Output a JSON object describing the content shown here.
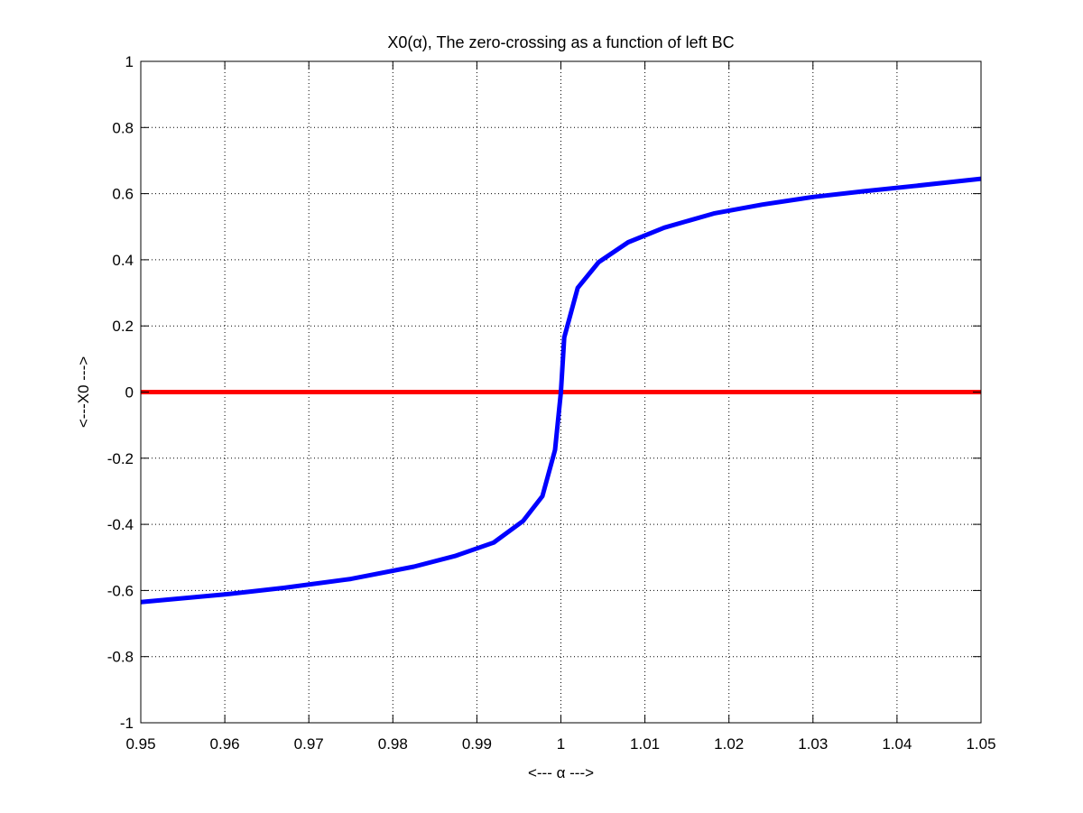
{
  "chart_data": {
    "type": "line",
    "title": "X0(α), The zero-crossing as a function of left BC",
    "xlabel": "<--- α --->",
    "ylabel": "<---X0 --->",
    "xlim": [
      0.95,
      1.05
    ],
    "ylim": [
      -1,
      1
    ],
    "xticks": [
      0.95,
      0.96,
      0.97,
      0.98,
      0.99,
      1,
      1.01,
      1.02,
      1.03,
      1.04,
      1.05
    ],
    "xtick_labels": [
      "0.95",
      "0.96",
      "0.97",
      "0.98",
      "0.99",
      "1",
      "1.01",
      "1.02",
      "1.03",
      "1.04",
      "1.05"
    ],
    "yticks": [
      -1,
      -0.8,
      -0.6,
      -0.4,
      -0.2,
      0,
      0.2,
      0.4,
      0.6,
      0.8,
      1
    ],
    "ytick_labels": [
      "-1",
      "-0.8",
      "-0.6",
      "-0.4",
      "-0.2",
      "0",
      "0.2",
      "0.4",
      "0.6",
      "0.8",
      "1"
    ],
    "grid": true,
    "series": [
      {
        "color": "#0000ff",
        "x": [
          0.95,
          0.96,
          0.967,
          0.975,
          0.9825,
          0.9875,
          0.992,
          0.9955,
          0.9978,
          0.9993,
          1.0,
          1.0004,
          1.002,
          1.0045,
          1.008,
          1.0123,
          1.0182,
          1.024,
          1.03,
          1.036,
          1.042,
          1.05
        ],
        "y": [
          -0.635,
          -0.612,
          -0.592,
          -0.565,
          -0.528,
          -0.495,
          -0.455,
          -0.39,
          -0.315,
          -0.175,
          0.0,
          0.165,
          0.315,
          0.393,
          0.453,
          0.497,
          0.54,
          0.567,
          0.59,
          0.607,
          0.623,
          0.645
        ]
      },
      {
        "color": "#ff0000",
        "x": [
          0.95,
          1.05
        ],
        "y": [
          0,
          0
        ]
      }
    ]
  }
}
